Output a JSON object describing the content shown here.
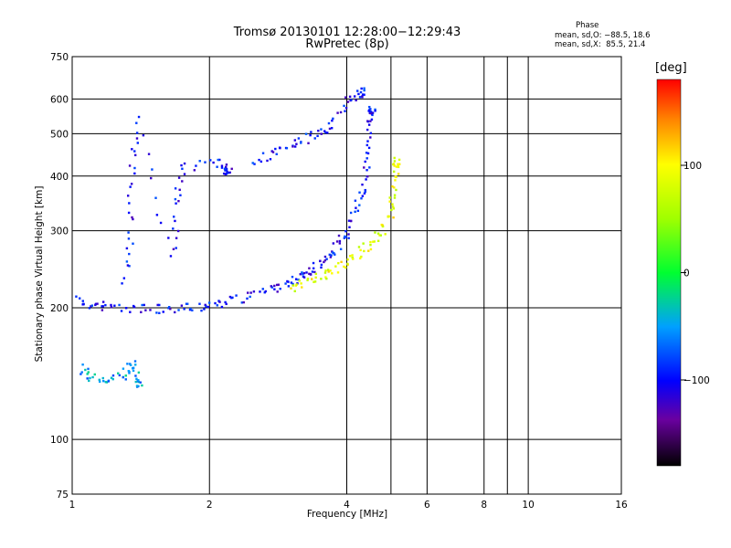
{
  "header": {
    "title": "Tromsø 20130101 12:28:00−12:29:43",
    "subtitle": "RwPretec (8p)"
  },
  "phase_box": {
    "heading": "Phase",
    "line_o": "mean, sd,O: −88.5, 18.6",
    "line_x": "mean, sd,X:  85.5, 21.4"
  },
  "colorbar": {
    "unit_label": "[deg]",
    "ticks": [
      {
        "value": 100,
        "label": "100"
      },
      {
        "value": 0,
        "label": "0"
      },
      {
        "value": -100,
        "label": "−100"
      }
    ],
    "range": [
      -180,
      180
    ]
  },
  "chart_data": {
    "type": "scatter",
    "title": "Tromsø 20130101 12:28:00−12:29:43",
    "subtitle": "RwPretec (8p)",
    "xlabel": "Frequency [MHz]",
    "ylabel": "Stationary phase Virtual Height [km]",
    "x_scale": "log",
    "y_scale": "log",
    "xlim": [
      1,
      16
    ],
    "ylim": [
      75,
      750
    ],
    "grid": true,
    "x_ticks": [
      {
        "value": 1,
        "label": "1"
      },
      {
        "value": 2,
        "label": "2"
      },
      {
        "value": 4,
        "label": "4"
      },
      {
        "value": 6,
        "label": "6"
      },
      {
        "value": 8,
        "label": "8"
      },
      {
        "value": 10,
        "label": "10"
      },
      {
        "value": 16,
        "label": "16"
      }
    ],
    "x_gridlines": [
      2,
      4,
      5,
      6,
      8,
      9,
      10
    ],
    "y_ticks": [
      {
        "value": 75,
        "label": "75"
      },
      {
        "value": 100,
        "label": "100"
      },
      {
        "value": 200,
        "label": "200"
      },
      {
        "value": 300,
        "label": "300"
      },
      {
        "value": 400,
        "label": "400"
      },
      {
        "value": 500,
        "label": "500"
      },
      {
        "value": 600,
        "label": "600"
      },
      {
        "value": 750,
        "label": "750"
      }
    ],
    "y_gridlines": [
      100,
      200,
      300,
      400,
      500,
      600
    ],
    "color_scale": "phase in deg (−180 black → −100 blue → 0 green → 100 yellow → 180 red)",
    "series": [
      {
        "trace": "O-mode F-layer trace",
        "phase": -100,
        "points": [
          [
            1.02,
            210
          ],
          [
            1.1,
            203
          ],
          [
            1.2,
            201
          ],
          [
            1.4,
            199
          ],
          [
            1.6,
            198
          ],
          [
            1.8,
            200
          ],
          [
            2.0,
            203
          ],
          [
            2.2,
            207
          ],
          [
            2.5,
            213
          ],
          [
            2.8,
            222
          ],
          [
            3.0,
            230
          ],
          [
            3.2,
            238
          ],
          [
            3.4,
            247
          ],
          [
            3.6,
            260
          ],
          [
            3.8,
            275
          ],
          [
            4.0,
            295
          ],
          [
            4.2,
            330
          ],
          [
            4.35,
            380
          ],
          [
            4.45,
            440
          ],
          [
            4.5,
            520
          ],
          [
            4.55,
            570
          ]
        ]
      },
      {
        "trace": "O-mode upper trace",
        "phase": -100,
        "points": [
          [
            2.5,
            430
          ],
          [
            2.8,
            455
          ],
          [
            3.1,
            475
          ],
          [
            3.4,
            495
          ],
          [
            3.7,
            520
          ],
          [
            4.0,
            590
          ],
          [
            4.3,
            620
          ]
        ]
      },
      {
        "trace": "X-mode F-layer trace",
        "phase": 90,
        "points": [
          [
            3.0,
            222
          ],
          [
            3.3,
            228
          ],
          [
            3.6,
            238
          ],
          [
            3.9,
            250
          ],
          [
            4.2,
            262
          ],
          [
            4.5,
            280
          ],
          [
            4.8,
            300
          ],
          [
            5.0,
            330
          ],
          [
            5.1,
            380
          ],
          [
            5.15,
            430
          ]
        ]
      },
      {
        "trace": "E-layer cluster",
        "phase": -50,
        "points": [
          [
            1.05,
            145
          ],
          [
            1.1,
            138
          ],
          [
            1.2,
            136
          ],
          [
            1.3,
            140
          ],
          [
            1.35,
            150
          ],
          [
            1.4,
            135
          ]
        ]
      },
      {
        "trace": "spread echoes",
        "phase": -100,
        "points": [
          [
            1.3,
            230
          ],
          [
            1.35,
            300
          ],
          [
            1.35,
            420
          ],
          [
            1.4,
            540
          ],
          [
            1.65,
            260
          ],
          [
            1.7,
            350
          ],
          [
            1.75,
            420
          ],
          [
            2.1,
            430
          ],
          [
            2.2,
            410
          ]
        ]
      }
    ]
  }
}
